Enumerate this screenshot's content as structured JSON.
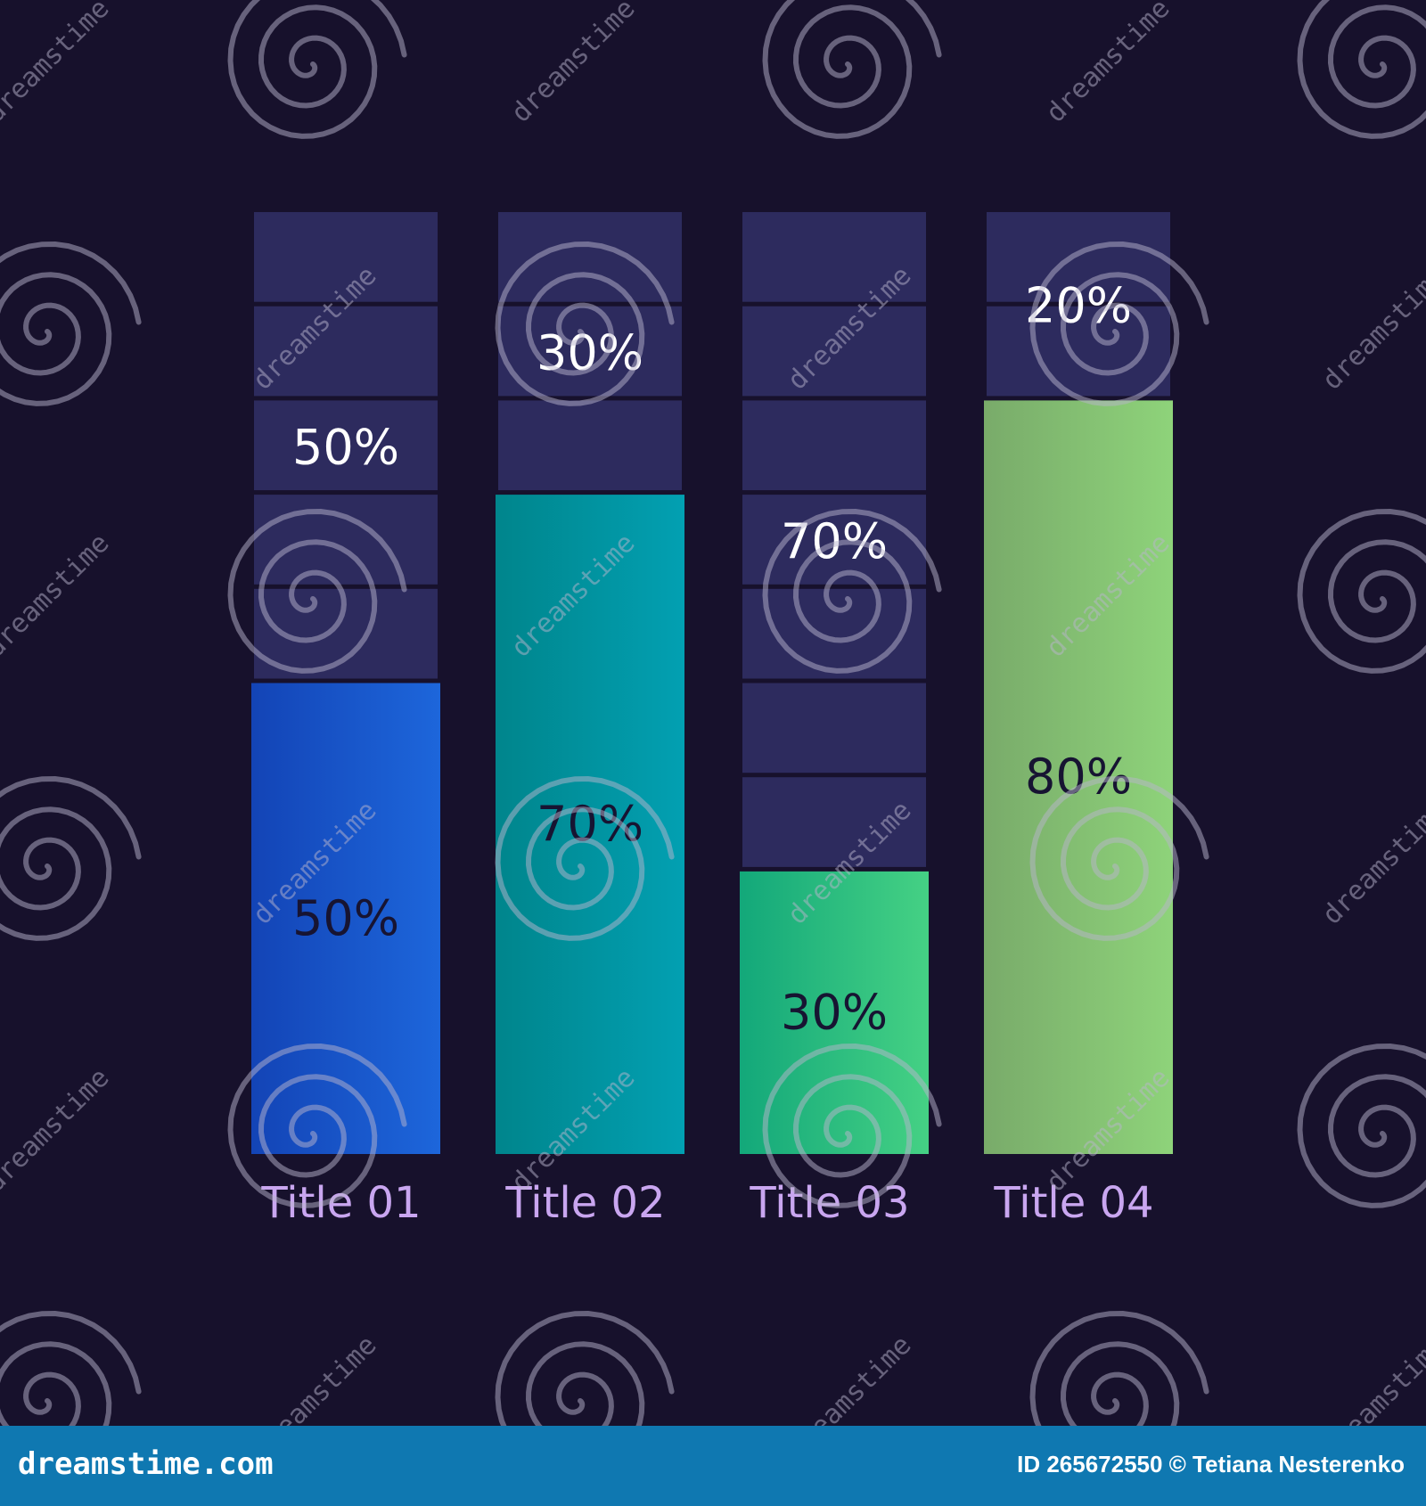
{
  "chart_data": {
    "type": "bar",
    "categories": [
      "Title 01",
      "Title 02",
      "Title 03",
      "Title 04"
    ],
    "values": [
      50,
      70,
      30,
      80
    ],
    "remainders": [
      50,
      30,
      70,
      20
    ],
    "value_labels": [
      "50%",
      "70%",
      "30%",
      "80%"
    ],
    "remainder_labels": [
      "50%",
      "30%",
      "70%",
      "20%"
    ],
    "ylim": [
      0,
      100
    ],
    "grid": false,
    "colors": {
      "background": "#17112c",
      "track": "#2d2b5e",
      "category_label": "#c9a6f0",
      "value_label": "#171432",
      "remainder_label": "#ffffff",
      "bar_gradients": [
        [
          "#1344b6",
          "#1d66db"
        ],
        [
          "#00858c",
          "#02a0b2"
        ],
        [
          "#13a87a",
          "#45d184"
        ],
        [
          "#79ab6a",
          "#8ed37a"
        ]
      ]
    }
  },
  "watermark": {
    "text": "dreamstime",
    "icon": "spiral-logo-icon"
  },
  "footer": {
    "site": "dreamstime.com",
    "credit": "ID 265672550 © Tetiana Nesterenko"
  }
}
